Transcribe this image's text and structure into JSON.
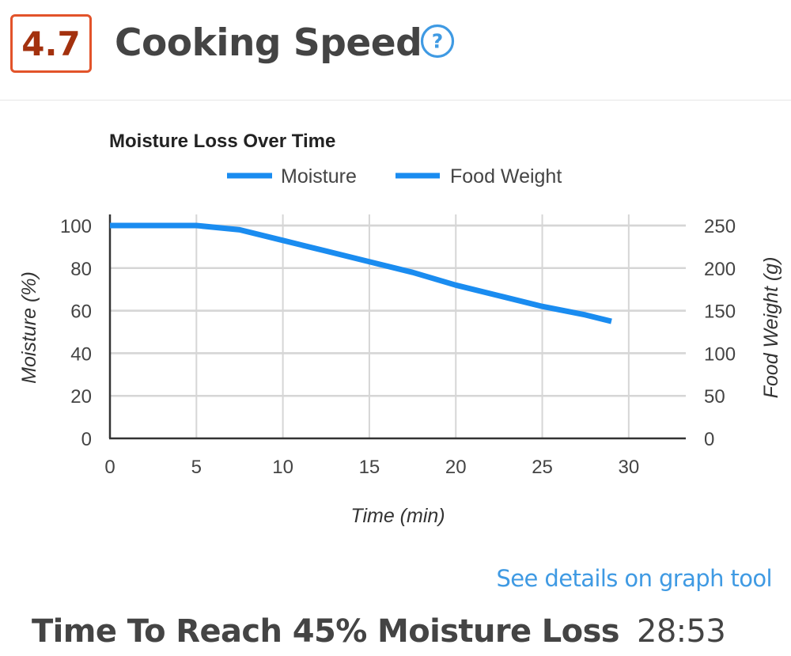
{
  "header": {
    "score": "4.7",
    "title": "Cooking Speed",
    "help_icon": "question-circle-icon",
    "score_color": "#e2532a",
    "help_color": "#3f9ae3"
  },
  "chart_data": {
    "type": "line",
    "title": "Moisture Loss Over Time",
    "xlabel": "Time (min)",
    "ylabel": "Moisture (%)",
    "y2label": "Food Weight (g)",
    "xlim": [
      0,
      33.3
    ],
    "ylim": [
      0,
      100
    ],
    "y2lim": [
      0,
      250
    ],
    "xticks": [
      0,
      5,
      10,
      15,
      20,
      25,
      30
    ],
    "yticks": [
      0,
      20,
      40,
      60,
      80,
      100
    ],
    "y2ticks": [
      0,
      50,
      100,
      150,
      200,
      250
    ],
    "grid": true,
    "legend_position": "top",
    "series": [
      {
        "name": "Moisture",
        "color": "#1a8cf0",
        "x": [
          0,
          5,
          7.5,
          10,
          12.5,
          15,
          17.5,
          20,
          22.5,
          25,
          27.5,
          29
        ],
        "y": [
          100,
          100,
          98,
          93,
          88,
          83,
          78,
          72,
          67,
          62,
          58,
          55
        ]
      },
      {
        "name": "Food Weight",
        "color": "#1a8cf0",
        "x": [],
        "y": []
      }
    ]
  },
  "footer": {
    "link": "See details on graph tool",
    "metric_label": "Time To Reach 45% Moisture Loss",
    "metric_value": "28:53",
    "link_color": "#3f9ae3"
  }
}
